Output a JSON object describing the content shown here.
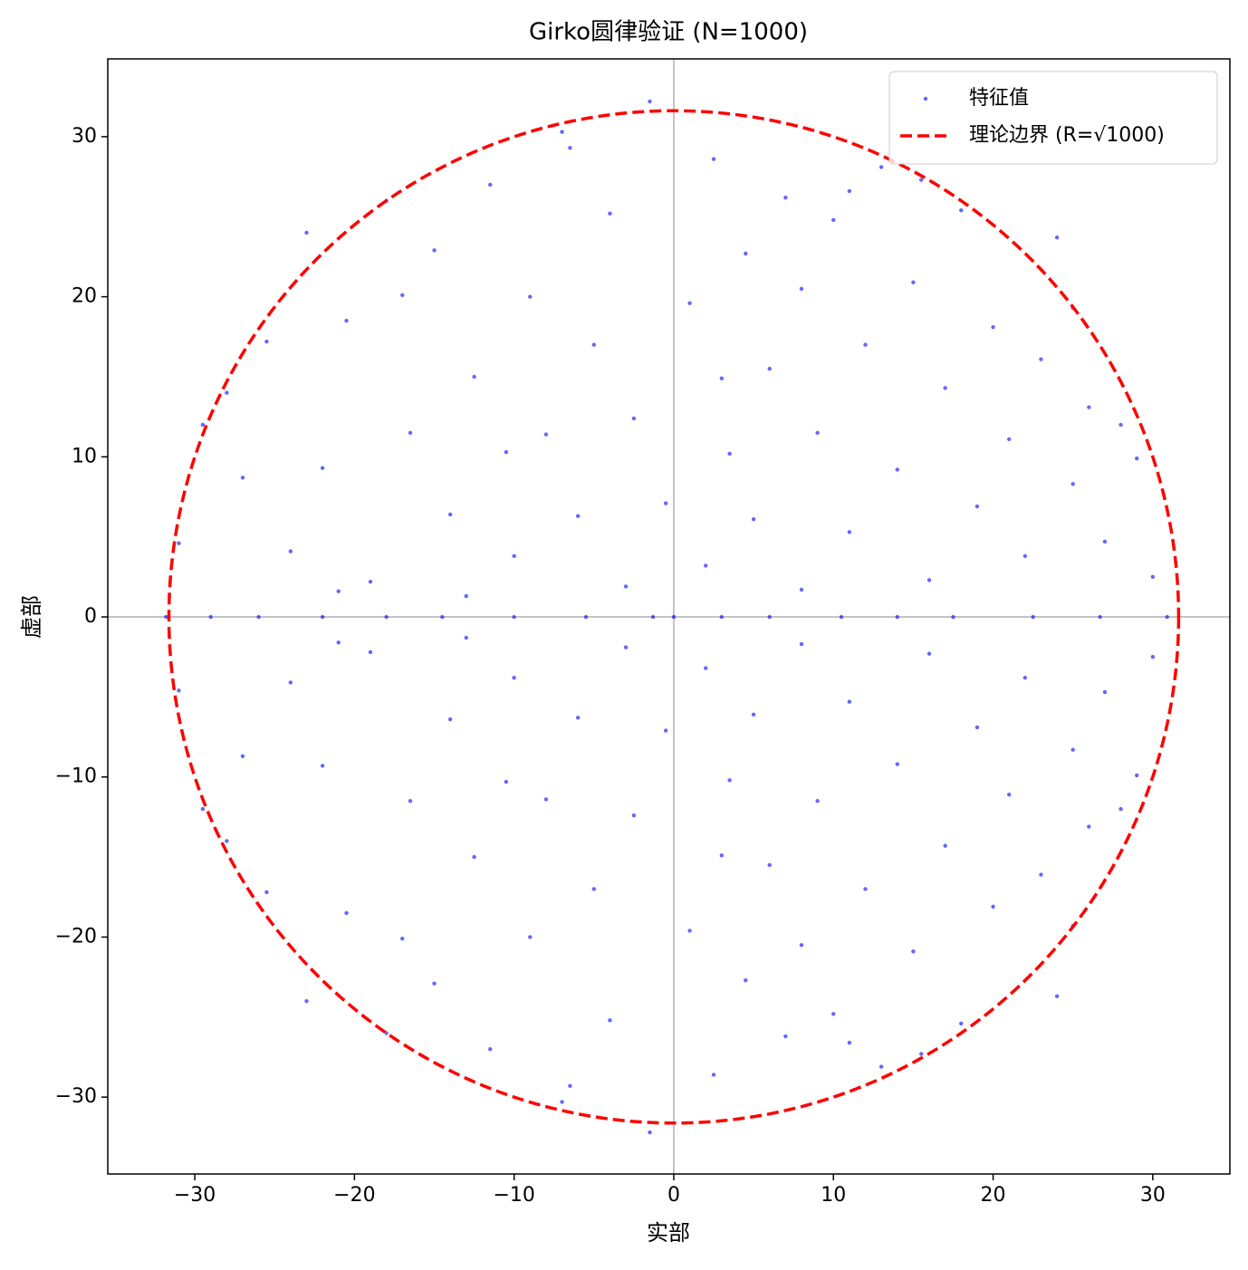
{
  "chart_data": {
    "type": "scatter",
    "title": "Girko圆律验证 (N=1000)",
    "x_label": "实部",
    "y_label": "虚部",
    "xlim": [
      -35.45,
      34.83
    ],
    "ylim": [
      -34.8,
      34.86
    ],
    "xticks": [
      {
        "value": -30,
        "label": "−30"
      },
      {
        "value": -20,
        "label": "−20"
      },
      {
        "value": -10,
        "label": "−10"
      },
      0,
      10,
      20,
      30
    ],
    "yticks": [
      {
        "value": -30,
        "label": "−30"
      },
      {
        "value": -20,
        "label": "−20"
      },
      {
        "value": -10,
        "label": "−10"
      },
      0,
      10,
      20,
      30
    ],
    "reference_lines": {
      "x": 0,
      "y": 0,
      "color": "#888888"
    },
    "legend": "upper right",
    "series": [
      {
        "name": "特征值",
        "color": "#0000ff",
        "x": [
          -29.5,
          -27,
          -25.5,
          -24,
          -22,
          -20.5,
          -19,
          -18,
          -16.5,
          -15,
          -14,
          -12.5,
          -11.5,
          -10,
          -9,
          -8,
          -7,
          -6,
          -5,
          -4,
          -3,
          -2.5,
          -1.5,
          -0.5,
          1,
          2,
          2.5,
          3.5,
          4.5,
          5,
          6,
          7,
          8,
          9,
          10,
          11,
          12,
          13,
          14,
          15,
          16,
          17,
          18,
          19,
          20,
          21,
          22,
          23,
          24,
          25,
          26,
          27,
          28,
          29,
          30,
          -31,
          -28,
          -23,
          -17,
          -13,
          -6.5,
          3,
          8,
          15.5,
          25,
          -10.5,
          -21,
          11,
          -29.5,
          -27,
          -25.5,
          -24,
          -22,
          -20.5,
          -19,
          -18,
          -16.5,
          -15,
          -14,
          -12.5,
          -11.5,
          -10,
          -9,
          -8,
          -7,
          -6,
          -5,
          -4,
          -3,
          -2.5,
          -1.5,
          -0.5,
          1,
          2,
          2.5,
          3.5,
          4.5,
          5,
          6,
          7,
          8,
          9,
          10,
          11,
          12,
          13,
          14,
          15,
          16,
          17,
          18,
          19,
          20,
          21,
          22,
          23,
          24,
          25,
          26,
          27,
          28,
          29,
          30,
          -31,
          -28,
          -23,
          -17,
          -13,
          -6.5,
          3,
          8,
          15.5,
          25,
          -10.5,
          -21,
          11,
          -31.8,
          -29,
          -26,
          -22,
          -18,
          -14.5,
          -10,
          -5.5,
          -1.3,
          0,
          3,
          6,
          10.5,
          14,
          17.5,
          22.5,
          26.7,
          30.9
        ],
        "y": [
          12,
          8.7,
          17.2,
          4.1,
          9.3,
          18.5,
          2.2,
          26,
          11.5,
          22.9,
          6.4,
          15,
          27,
          3.8,
          20,
          11.4,
          30.3,
          6.3,
          17,
          25.2,
          1.9,
          12.4,
          32.2,
          7.1,
          19.6,
          3.2,
          28.6,
          10.2,
          22.7,
          6.1,
          15.5,
          26.2,
          1.7,
          11.5,
          24.8,
          5.3,
          17,
          28.1,
          9.2,
          20.9,
          2.3,
          14.3,
          25.4,
          6.9,
          18.1,
          11.1,
          3.8,
          16.1,
          23.7,
          8.3,
          13.1,
          4.7,
          12,
          9.9,
          2.5,
          4.6,
          14,
          24,
          20.1,
          1.3,
          29.3,
          14.9,
          20.5,
          27.3,
          19.3,
          10.3,
          1.6,
          26.6,
          -12,
          -8.7,
          -17.2,
          -4.1,
          -9.3,
          -18.5,
          -2.2,
          -26,
          -11.5,
          -22.9,
          -6.4,
          -15,
          -27,
          -3.8,
          -20,
          -11.4,
          -30.3,
          -6.3,
          -17,
          -25.2,
          -1.9,
          -12.4,
          -32.2,
          -7.1,
          -19.6,
          -3.2,
          -28.6,
          -10.2,
          -22.7,
          -6.1,
          -15.5,
          -26.2,
          -1.7,
          -11.5,
          -24.8,
          -5.3,
          -17,
          -28.1,
          -9.2,
          -20.9,
          -2.3,
          -14.3,
          -25.4,
          -6.9,
          -18.1,
          -11.1,
          -3.8,
          -16.1,
          -23.7,
          -8.3,
          -13.1,
          -4.7,
          -12,
          -9.9,
          -2.5,
          -4.6,
          -14,
          -24,
          -20.1,
          -1.3,
          -29.3,
          -14.9,
          -20.5,
          -27.3,
          -19.3,
          -10.3,
          -1.6,
          -26.6,
          0,
          0,
          0,
          0,
          0,
          0,
          0,
          0,
          0,
          0,
          0,
          0,
          0,
          0,
          0,
          0,
          0,
          0
        ]
      },
      {
        "name": "理论边界 (R=√1000)",
        "type": "circle",
        "color": "#ff0000",
        "radius": 31.62,
        "dashed": true
      }
    ]
  }
}
